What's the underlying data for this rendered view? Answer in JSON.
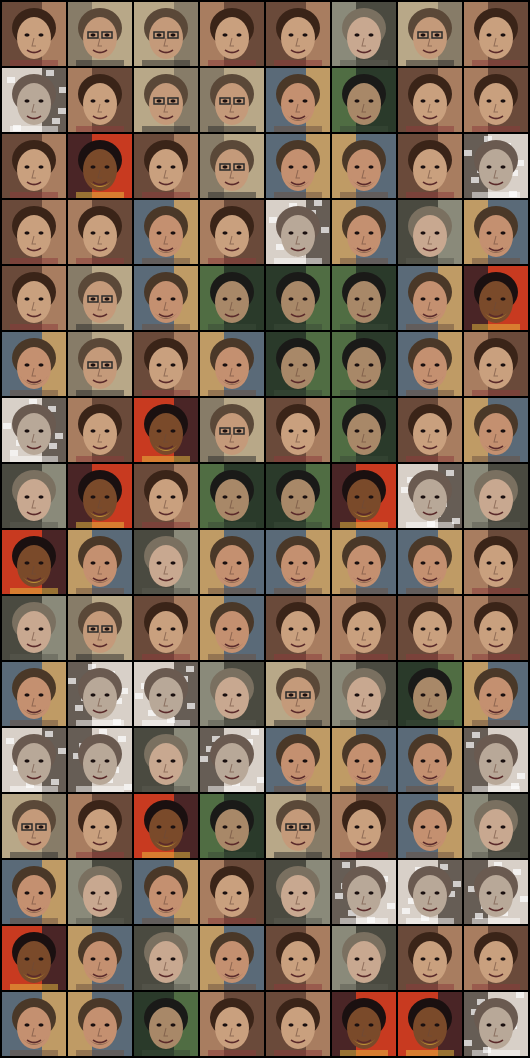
{
  "grid": {
    "rows": 16,
    "columns": 8,
    "background": "#000000",
    "tiles": [
      "girl",
      "man-glasses",
      "man-glasses",
      "girl",
      "girl",
      "woman-grey",
      "man-glasses",
      "girl",
      "noisy-grey",
      "girl",
      "man-glasses",
      "man-glasses",
      "man-beard",
      "boy-dark",
      "girl",
      "girl",
      "girl",
      "dark-skin",
      "girl",
      "man-glasses",
      "man-beard",
      "man-beard",
      "girl",
      "noisy-grey",
      "girl",
      "girl",
      "man-beard",
      "girl",
      "noisy-grey",
      "man-beard",
      "woman-grey",
      "man-beard",
      "girl",
      "man-glasses",
      "man-beard",
      "boy-dark",
      "boy-dark",
      "boy-dark",
      "man-beard",
      "dark-skin",
      "man-beard",
      "man-glasses",
      "girl",
      "man-beard",
      "boy-dark",
      "boy-dark",
      "man-beard",
      "girl",
      "noisy-grey",
      "girl",
      "dark-skin",
      "man-glasses",
      "girl",
      "boy-dark",
      "girl",
      "man-beard",
      "woman-grey",
      "dark-skin",
      "girl",
      "boy-dark",
      "boy-dark",
      "dark-skin",
      "noisy-grey",
      "woman-grey",
      "dark-skin",
      "man-beard",
      "woman-grey",
      "man-beard",
      "man-beard",
      "man-beard",
      "man-beard",
      "girl",
      "woman-grey",
      "man-glasses",
      "girl",
      "man-beard",
      "girl",
      "girl",
      "girl",
      "girl",
      "man-beard",
      "noisy-grey",
      "noisy-grey",
      "woman-grey",
      "man-glasses",
      "woman-grey",
      "boy-dark",
      "man-beard",
      "noisy-grey",
      "noisy-grey",
      "woman-grey",
      "noisy-grey",
      "man-beard",
      "man-beard",
      "man-beard",
      "noisy-grey",
      "man-glasses",
      "girl",
      "dark-skin",
      "boy-dark",
      "man-glasses",
      "girl",
      "man-beard",
      "woman-grey",
      "man-beard",
      "woman-grey",
      "man-beard",
      "girl",
      "woman-grey",
      "noisy-grey",
      "noisy-grey",
      "noisy-grey",
      "dark-skin",
      "man-beard",
      "woman-grey",
      "man-beard",
      "girl",
      "woman-grey",
      "girl",
      "girl",
      "man-beard",
      "man-beard",
      "boy-dark",
      "girl",
      "girl",
      "dark-skin",
      "dark-skin",
      "noisy-grey"
    ],
    "palettes": {
      "girl": {
        "bg": "#6a4a3a",
        "bg2": "#b88a6a",
        "skin": "#c9a07e",
        "hair": "#3a2418",
        "accent": "#8a3a3a"
      },
      "man-glasses": {
        "bg": "#b8a888",
        "bg2": "#7a7060",
        "skin": "#c49a7a",
        "hair": "#5a4838",
        "accent": "#2a2a2a"
      },
      "man-beard": {
        "bg": "#5a6a78",
        "bg2": "#d8a860",
        "skin": "#c49070",
        "hair": "#4a3828",
        "accent": "#6a5040"
      },
      "woman-grey": {
        "bg": "#4a4a40",
        "bg2": "#9a9a88",
        "skin": "#c8a890",
        "hair": "#7a7060",
        "accent": "#5a5a50"
      },
      "noisy-grey": {
        "bg": "#d8d0c8",
        "bg2": "#4a4038",
        "skin": "#b8a898",
        "hair": "#6a5a50",
        "accent": "#ffffff"
      },
      "boy-dark": {
        "bg": "#2a3a2a",
        "bg2": "#5a7a4a",
        "skin": "#a88868",
        "hair": "#1a1a18",
        "accent": "#3a4a38"
      },
      "dark-skin": {
        "bg": "#c83a20",
        "bg2": "#2a2028",
        "skin": "#7a4a2a",
        "hair": "#1a1010",
        "accent": "#e8c040"
      }
    }
  }
}
